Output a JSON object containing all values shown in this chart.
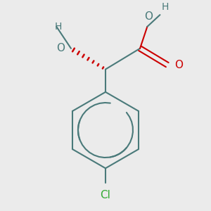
{
  "bg_color": "#ebebeb",
  "atom_color": "#4a7a7a",
  "o_color": "#cc0000",
  "cl_color": "#33aa33",
  "bond_color": "#4a7a7a",
  "bond_width": 1.5,
  "figsize": [
    3.0,
    3.0
  ],
  "dpi": 100,
  "xlim": [
    -1.1,
    1.1
  ],
  "ylim": [
    -1.4,
    0.85
  ]
}
